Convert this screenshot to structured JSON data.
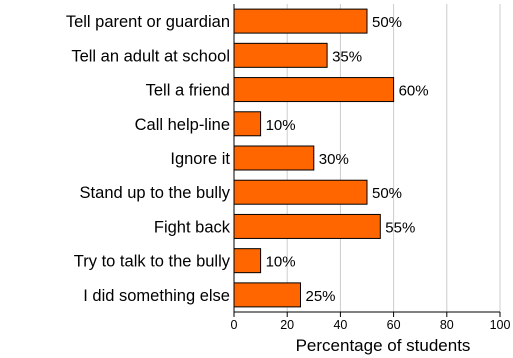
{
  "chart_data": {
    "type": "bar",
    "orientation": "horizontal",
    "categories": [
      "Tell parent or guardian",
      "Tell an adult at school",
      "Tell a friend",
      "Call help-line",
      "Ignore it",
      "Stand up to the bully",
      "Fight back",
      "Try to talk to the bully",
      "I did something else"
    ],
    "values": [
      50,
      35,
      60,
      10,
      30,
      50,
      55,
      10,
      25
    ],
    "value_labels": [
      "50%",
      "35%",
      "60%",
      "10%",
      "30%",
      "50%",
      "55%",
      "10%",
      "25%"
    ],
    "xlabel": "Percentage of students",
    "xlim": [
      0,
      100
    ],
    "xticks": [
      0,
      20,
      40,
      60,
      80,
      100
    ],
    "grid": "vertical",
    "bar_color": "#ff6600"
  }
}
